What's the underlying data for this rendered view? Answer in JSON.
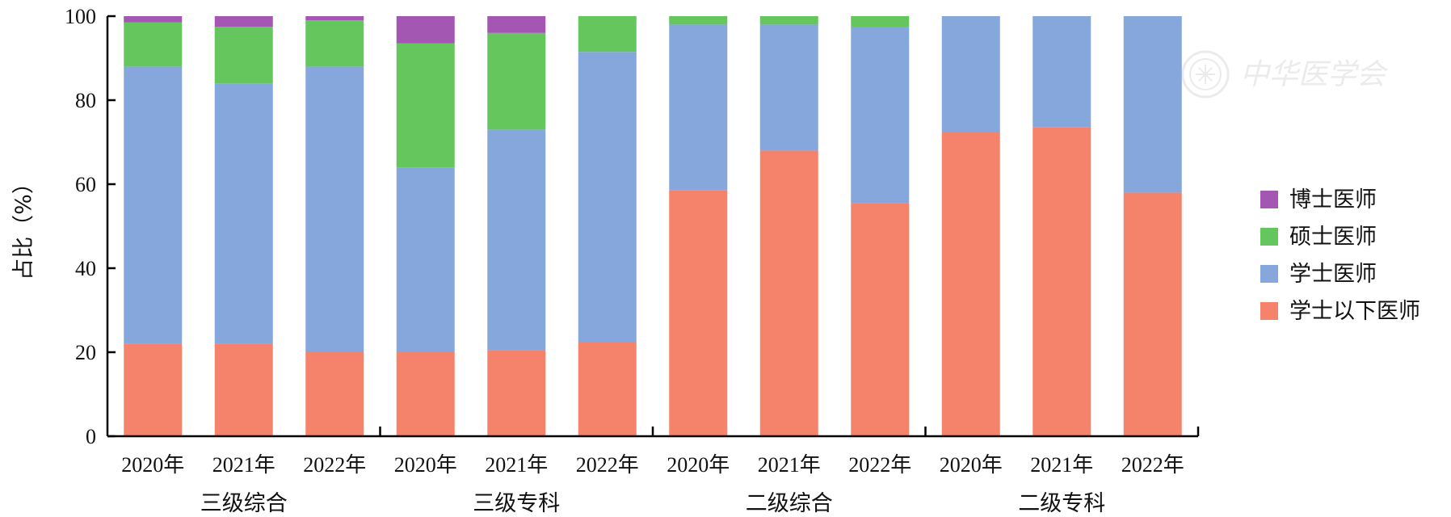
{
  "chart_data": {
    "type": "bar",
    "stacked": true,
    "title": "",
    "ylabel": "占比（%）",
    "ylim": [
      0,
      100
    ],
    "yticks": [
      0,
      20,
      40,
      60,
      80,
      100
    ],
    "groups": [
      "三级综合",
      "三级专科",
      "二级综合",
      "二级专科"
    ],
    "categories": [
      "2020年",
      "2021年",
      "2022年",
      "2020年",
      "2021年",
      "2022年",
      "2020年",
      "2021年",
      "2022年",
      "2020年",
      "2021年",
      "2022年"
    ],
    "series": [
      {
        "name": "学士以下医师",
        "color": "#f5836b",
        "values": [
          22,
          22,
          20,
          20,
          20.5,
          22.5,
          58.5,
          68,
          55.5,
          72.5,
          73.5,
          58
        ]
      },
      {
        "name": "学士医师",
        "color": "#86a7dc",
        "values": [
          66,
          62,
          68,
          44,
          52.5,
          69,
          39.5,
          30,
          42,
          27.5,
          26.5,
          42
        ]
      },
      {
        "name": "硕士医师",
        "color": "#66c65e",
        "values": [
          10.5,
          13.5,
          11,
          29.5,
          23,
          8.5,
          2,
          2,
          2.5,
          0,
          0,
          0
        ]
      },
      {
        "name": "博士医师",
        "color": "#a357b2",
        "values": [
          1.5,
          2.5,
          1,
          6.5,
          4,
          0,
          0,
          0,
          0,
          0,
          0,
          0
        ]
      }
    ],
    "legend_position": "right",
    "grid": false,
    "watermark": "中华医学会"
  }
}
